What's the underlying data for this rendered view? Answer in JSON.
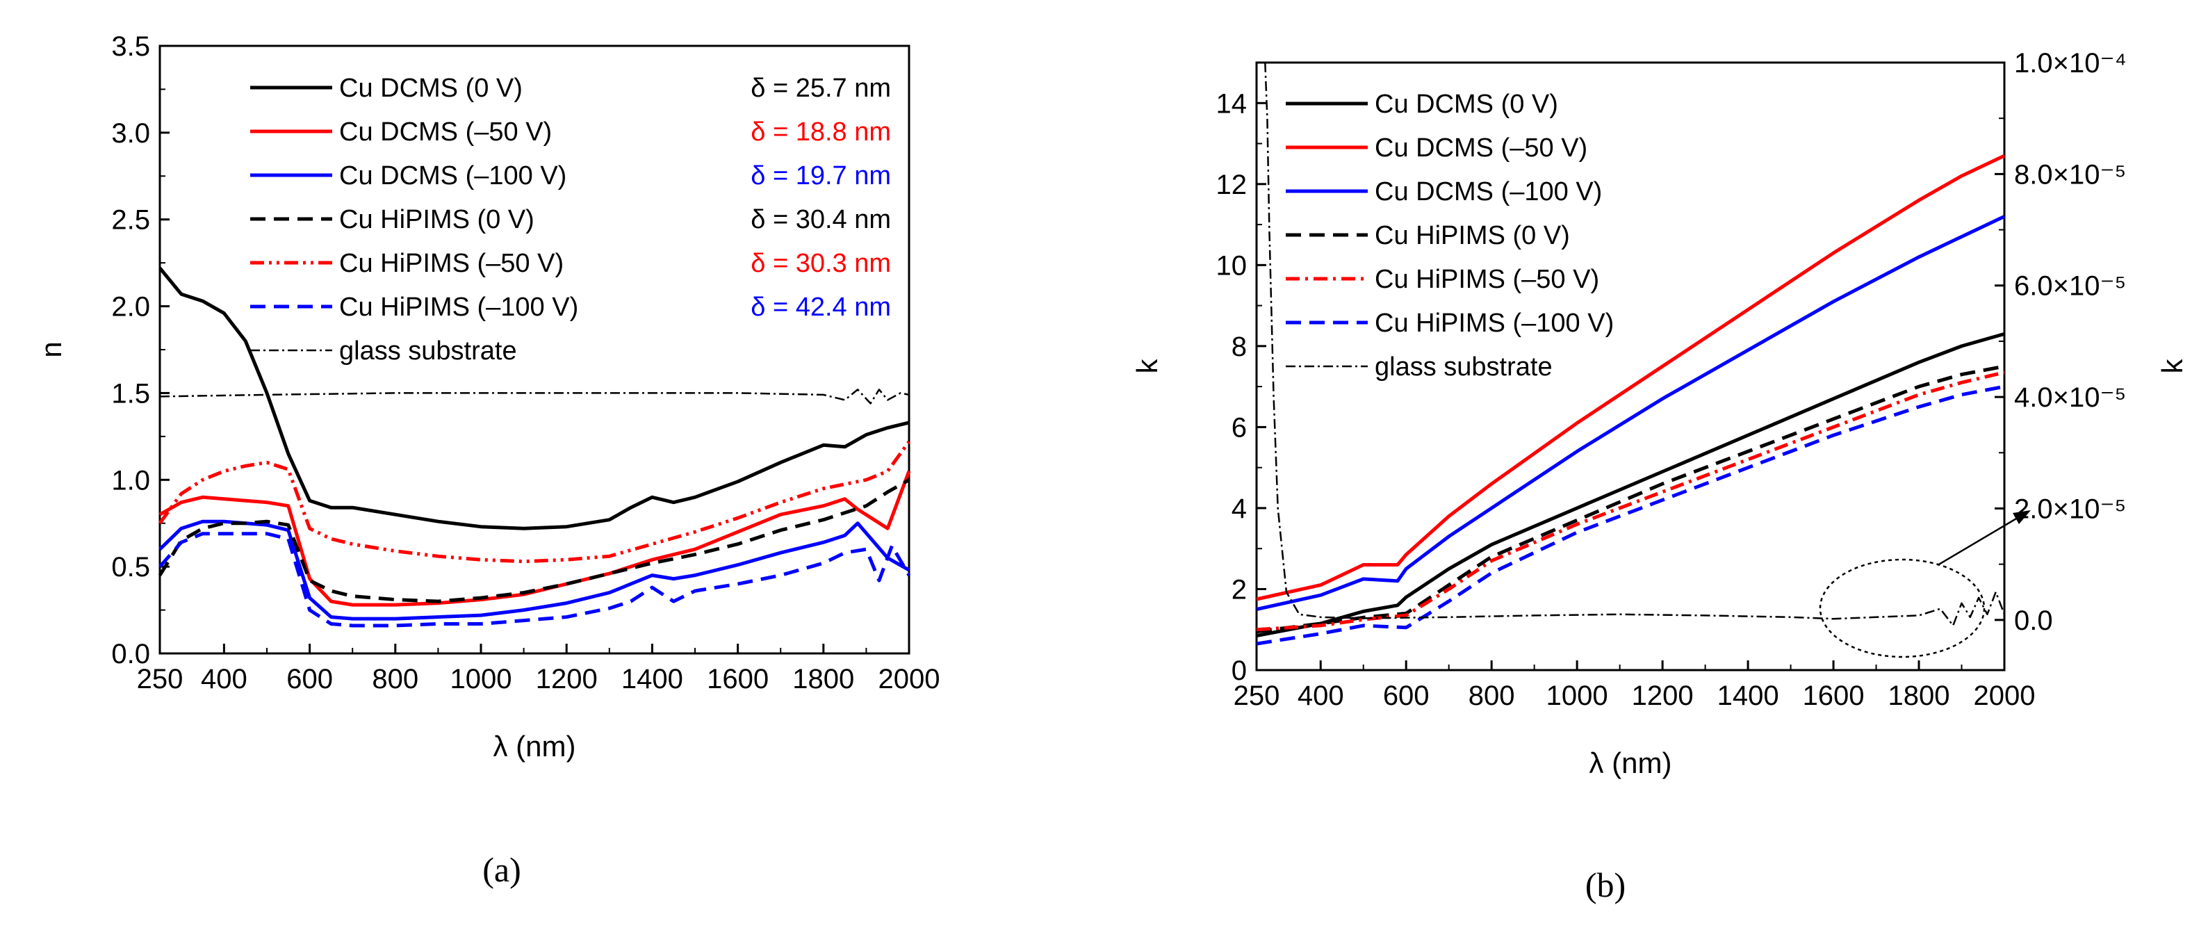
{
  "chart_data": [
    {
      "type": "line",
      "panel_label": "(a)",
      "title": "",
      "xlabel": "λ (nm)",
      "ylabel": "n",
      "xlim": [
        250,
        2000
      ],
      "ylim": [
        0,
        3.5
      ],
      "xticks": [
        250,
        400,
        600,
        800,
        1000,
        1200,
        1400,
        1600,
        1800,
        2000
      ],
      "yticks": [
        0.0,
        0.5,
        1.0,
        1.5,
        2.0,
        2.5,
        3.0,
        3.5
      ],
      "ytick_labels": [
        "0.0",
        "0.5",
        "1.0",
        "1.5",
        "2.0",
        "2.5",
        "3.0",
        "3.5"
      ],
      "legend_position": "top",
      "series": [
        {
          "name": "Cu DCMS (0 V)",
          "color": "#000000",
          "dash": "solid",
          "x": [
            250,
            300,
            350,
            400,
            450,
            500,
            550,
            600,
            650,
            700,
            800,
            900,
            1000,
            1100,
            1200,
            1300,
            1350,
            1400,
            1450,
            1500,
            1600,
            1700,
            1800,
            1850,
            1900,
            1950,
            2000
          ],
          "y": [
            2.22,
            2.07,
            2.03,
            1.96,
            1.8,
            1.5,
            1.15,
            0.88,
            0.84,
            0.84,
            0.8,
            0.76,
            0.73,
            0.72,
            0.73,
            0.77,
            0.84,
            0.9,
            0.87,
            0.9,
            0.99,
            1.1,
            1.2,
            1.19,
            1.26,
            1.3,
            1.33
          ]
        },
        {
          "name": "Cu DCMS (–50 V)",
          "color": "#ff0000",
          "dash": "solid",
          "x": [
            250,
            300,
            350,
            400,
            450,
            500,
            550,
            600,
            650,
            700,
            800,
            900,
            1000,
            1100,
            1200,
            1300,
            1400,
            1500,
            1600,
            1700,
            1800,
            1850,
            1880,
            1950,
            2000
          ],
          "y": [
            0.8,
            0.87,
            0.9,
            0.89,
            0.88,
            0.87,
            0.85,
            0.43,
            0.3,
            0.28,
            0.28,
            0.29,
            0.31,
            0.34,
            0.4,
            0.46,
            0.54,
            0.6,
            0.7,
            0.8,
            0.85,
            0.89,
            0.83,
            0.72,
            1.05
          ]
        },
        {
          "name": "Cu DCMS (–100 V)",
          "color": "#0000ff",
          "dash": "solid",
          "x": [
            250,
            300,
            350,
            400,
            450,
            500,
            550,
            600,
            650,
            700,
            800,
            900,
            1000,
            1100,
            1200,
            1300,
            1350,
            1400,
            1450,
            1500,
            1600,
            1700,
            1800,
            1850,
            1880,
            1950,
            2000
          ],
          "y": [
            0.6,
            0.72,
            0.76,
            0.76,
            0.75,
            0.74,
            0.71,
            0.32,
            0.21,
            0.2,
            0.2,
            0.21,
            0.22,
            0.25,
            0.29,
            0.35,
            0.4,
            0.45,
            0.43,
            0.45,
            0.51,
            0.58,
            0.64,
            0.68,
            0.75,
            0.55,
            0.48
          ]
        },
        {
          "name": "Cu HiPIMS (0 V)",
          "color": "#000000",
          "dash": "dash",
          "x": [
            250,
            300,
            350,
            400,
            450,
            500,
            550,
            600,
            650,
            700,
            800,
            900,
            1000,
            1100,
            1200,
            1300,
            1400,
            1500,
            1600,
            1700,
            1800,
            1900,
            1950,
            2000
          ],
          "y": [
            0.45,
            0.65,
            0.72,
            0.75,
            0.75,
            0.76,
            0.74,
            0.42,
            0.36,
            0.33,
            0.31,
            0.3,
            0.32,
            0.35,
            0.4,
            0.46,
            0.52,
            0.57,
            0.63,
            0.71,
            0.77,
            0.85,
            0.93,
            1.0
          ]
        },
        {
          "name": "Cu HiPIMS (–50 V)",
          "color": "#ff0000",
          "dash": "dashdotdot",
          "x": [
            250,
            300,
            350,
            400,
            450,
            500,
            550,
            600,
            650,
            700,
            800,
            900,
            1000,
            1100,
            1200,
            1300,
            1400,
            1500,
            1600,
            1700,
            1800,
            1900,
            1950,
            2000
          ],
          "y": [
            0.75,
            0.92,
            1.0,
            1.05,
            1.08,
            1.1,
            1.06,
            0.72,
            0.66,
            0.63,
            0.59,
            0.56,
            0.54,
            0.53,
            0.54,
            0.56,
            0.63,
            0.7,
            0.78,
            0.87,
            0.95,
            1.0,
            1.05,
            1.22
          ]
        },
        {
          "name": "Cu HiPIMS (–100 V)",
          "color": "#0000ff",
          "dash": "dash",
          "x": [
            250,
            300,
            350,
            400,
            450,
            500,
            550,
            600,
            650,
            700,
            800,
            900,
            1000,
            1100,
            1200,
            1300,
            1350,
            1400,
            1450,
            1500,
            1600,
            1700,
            1800,
            1850,
            1900,
            1930,
            1960,
            2000
          ],
          "y": [
            0.5,
            0.64,
            0.69,
            0.69,
            0.69,
            0.69,
            0.66,
            0.25,
            0.17,
            0.16,
            0.16,
            0.17,
            0.17,
            0.19,
            0.21,
            0.26,
            0.3,
            0.38,
            0.3,
            0.36,
            0.4,
            0.45,
            0.52,
            0.58,
            0.6,
            0.42,
            0.62,
            0.45
          ]
        },
        {
          "name": "glass substrate",
          "color": "#000000",
          "dash": "dashdot",
          "x": [
            250,
            500,
            800,
            1000,
            1200,
            1400,
            1600,
            1800,
            1850,
            1880,
            1910,
            1930,
            1950,
            1980,
            2000
          ],
          "y": [
            1.48,
            1.49,
            1.5,
            1.5,
            1.5,
            1.5,
            1.5,
            1.49,
            1.46,
            1.52,
            1.44,
            1.52,
            1.46,
            1.5,
            1.49
          ]
        }
      ],
      "annotations": [
        {
          "text": "δ = 25.7 nm",
          "color": "#000000"
        },
        {
          "text": "δ = 18.8 nm",
          "color": "#ff0000"
        },
        {
          "text": "δ = 19.7 nm",
          "color": "#0000ff"
        },
        {
          "text": "δ = 30.4 nm",
          "color": "#000000"
        },
        {
          "text": "δ = 30.3 nm",
          "color": "#ff0000"
        },
        {
          "text": "δ = 42.4 nm",
          "color": "#0000ff"
        }
      ]
    },
    {
      "type": "line",
      "panel_label": "(b)",
      "title": "",
      "xlabel": "λ (nm)",
      "ylabel": "k",
      "y2label": "k",
      "xlim": [
        250,
        2000
      ],
      "ylim": [
        0,
        15
      ],
      "y2lim": [
        -9e-06,
        0.0001
      ],
      "xticks": [
        250,
        400,
        600,
        800,
        1000,
        1200,
        1400,
        1600,
        1800,
        2000
      ],
      "yticks": [
        0,
        2,
        4,
        6,
        8,
        10,
        12,
        14
      ],
      "y2ticks": [
        0,
        2e-05,
        4e-05,
        6e-05,
        8e-05,
        0.0001
      ],
      "y2tick_labels": [
        "0.0",
        "2.0×10⁻⁵",
        "4.0×10⁻⁵",
        "6.0×10⁻⁵",
        "8.0×10⁻⁵",
        "1.0×10⁻⁴"
      ],
      "legend_position": "top-left",
      "inset_annotation": "dotted ellipse around 1600–1900 nm of glass substrate curve with arrow",
      "series": [
        {
          "name": "Cu DCMS (0 V)",
          "color": "#000000",
          "dash": "solid",
          "axis": "left",
          "x": [
            250,
            400,
            500,
            580,
            600,
            700,
            800,
            1000,
            1200,
            1400,
            1600,
            1800,
            1900,
            2000
          ],
          "y": [
            0.85,
            1.15,
            1.45,
            1.6,
            1.8,
            2.5,
            3.1,
            4.0,
            4.9,
            5.8,
            6.7,
            7.6,
            8.0,
            8.3
          ]
        },
        {
          "name": "Cu DCMS (–50 V)",
          "color": "#ff0000",
          "dash": "solid",
          "axis": "left",
          "x": [
            250,
            400,
            500,
            580,
            600,
            700,
            800,
            1000,
            1200,
            1400,
            1600,
            1800,
            1900,
            2000
          ],
          "y": [
            1.75,
            2.1,
            2.6,
            2.6,
            2.85,
            3.8,
            4.6,
            6.1,
            7.5,
            8.9,
            10.3,
            11.6,
            12.2,
            12.7
          ]
        },
        {
          "name": "Cu DCMS (–100 V)",
          "color": "#0000ff",
          "dash": "solid",
          "axis": "left",
          "x": [
            250,
            400,
            500,
            580,
            600,
            700,
            800,
            1000,
            1200,
            1400,
            1600,
            1800,
            1900,
            2000
          ],
          "y": [
            1.5,
            1.85,
            2.25,
            2.2,
            2.5,
            3.3,
            4.0,
            5.4,
            6.7,
            7.9,
            9.1,
            10.2,
            10.7,
            11.2
          ]
        },
        {
          "name": "Cu HiPIMS (0 V)",
          "color": "#000000",
          "dash": "dash",
          "axis": "left",
          "x": [
            250,
            400,
            500,
            600,
            700,
            800,
            1000,
            1200,
            1400,
            1600,
            1800,
            1900,
            2000
          ],
          "y": [
            0.95,
            1.15,
            1.3,
            1.4,
            2.1,
            2.8,
            3.7,
            4.6,
            5.4,
            6.2,
            7.0,
            7.3,
            7.5
          ]
        },
        {
          "name": "Cu HiPIMS (–50 V)",
          "color": "#ff0000",
          "dash": "dashdot",
          "axis": "left",
          "x": [
            250,
            400,
            500,
            600,
            700,
            800,
            1000,
            1200,
            1400,
            1600,
            1800,
            1900,
            2000
          ],
          "y": [
            1.0,
            1.1,
            1.25,
            1.35,
            2.0,
            2.7,
            3.6,
            4.4,
            5.2,
            6.0,
            6.8,
            7.1,
            7.35
          ]
        },
        {
          "name": "Cu HiPIMS (–100 V)",
          "color": "#0000ff",
          "dash": "dash",
          "axis": "left",
          "x": [
            250,
            400,
            500,
            600,
            700,
            800,
            1000,
            1200,
            1400,
            1600,
            1800,
            1900,
            2000
          ],
          "y": [
            0.65,
            0.9,
            1.1,
            1.05,
            1.7,
            2.4,
            3.4,
            4.2,
            5.0,
            5.8,
            6.5,
            6.8,
            7.0
          ]
        },
        {
          "name": "glass substrate",
          "color": "#000000",
          "dash": "dashdot",
          "axis": "right",
          "x": [
            270,
            275,
            280,
            290,
            300,
            320,
            350,
            400,
            500,
            700,
            900,
            1100,
            1300,
            1500,
            1600,
            1700,
            1800,
            1850,
            1880,
            1900,
            1920,
            1940,
            1960,
            1980,
            2000
          ],
          "y": [
            0.0001,
            9e-05,
            7e-05,
            4e-05,
            2e-05,
            5e-06,
            1e-06,
            5e-07,
            3e-07,
            5e-07,
            8e-07,
            1e-06,
            8e-07,
            5e-07,
            2e-07,
            5e-07,
            8e-07,
            2e-06,
            -1e-06,
            3e-06,
            5e-07,
            4e-06,
            1e-06,
            5e-06,
            1e-06
          ]
        }
      ]
    }
  ]
}
